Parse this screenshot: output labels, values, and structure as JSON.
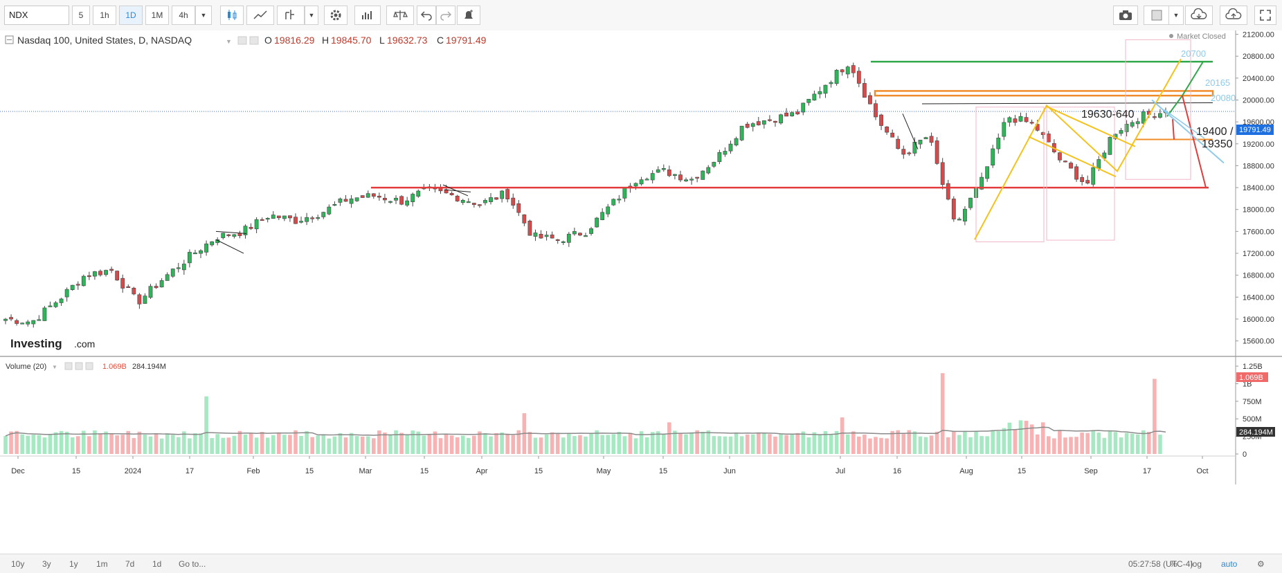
{
  "toolbar": {
    "symbol": "NDX",
    "intervals": [
      "5",
      "1h",
      "1D",
      "1M",
      "4h"
    ],
    "active_interval": "1D"
  },
  "legend": {
    "title": "Nasdaq 100, United States, D, NASDAQ",
    "o_label": "O",
    "o_value": "19816.29",
    "h_label": "H",
    "h_value": "19845.70",
    "l_label": "L",
    "l_value": "19632.73",
    "c_label": "C",
    "c_value": "19791.49",
    "market_status": "Market Closed",
    "brand": "Investing",
    "brand_suffix": ".com"
  },
  "volume_legend": {
    "title": "Volume (20)",
    "v1": "1.069B",
    "v2": "284.194M"
  },
  "chart_data": {
    "type": "candlestick",
    "price_axis": {
      "ticks": [
        15600,
        16000,
        16400,
        16800,
        17200,
        17600,
        18000,
        18400,
        18800,
        19200,
        19600,
        20000,
        20400,
        20800,
        21200
      ],
      "ylim": [
        15330,
        21270
      ],
      "last_price_label": "19791.49"
    },
    "volume_axis": {
      "ticks": [
        "0",
        "250M",
        "500M",
        "750M",
        "1B",
        "1.25B"
      ],
      "ylim": [
        0,
        1.3
      ],
      "last_volume_label": "1.069B",
      "ma_label": "284.194M"
    },
    "time_axis": {
      "labels": [
        "Dec",
        "15",
        "2024",
        "17",
        "Feb",
        "15",
        "Mar",
        "15",
        "Apr",
        "15",
        "May",
        "15",
        "Jun",
        "Jul",
        "16",
        "Aug",
        "15",
        "Sep",
        "17",
        "Oct"
      ]
    },
    "annotations": {
      "level_20700": "20700",
      "level_20165": "20165",
      "level_20080": "20080",
      "level_19630": "19630-640",
      "level_19400": "19400 /",
      "level_19350": "19350"
    },
    "ohlc_series": [
      {
        "d": "2023-11-30",
        "c": 16000
      },
      {
        "d": "2023-12-07",
        "c": 15950
      },
      {
        "d": "2023-12-14",
        "c": 16350
      },
      {
        "d": "2023-12-21",
        "c": 16800
      },
      {
        "d": "2023-12-28",
        "c": 16900
      },
      {
        "d": "2024-01-04",
        "c": 16300
      },
      {
        "d": "2024-01-11",
        "c": 16750
      },
      {
        "d": "2024-01-18",
        "c": 17150
      },
      {
        "d": "2024-01-25",
        "c": 17500
      },
      {
        "d": "2024-02-01",
        "c": 17600
      },
      {
        "d": "2024-02-08",
        "c": 17900
      },
      {
        "d": "2024-02-15",
        "c": 17800
      },
      {
        "d": "2024-02-22",
        "c": 17950
      },
      {
        "d": "2024-02-29",
        "c": 18200
      },
      {
        "d": "2024-03-07",
        "c": 18250
      },
      {
        "d": "2024-03-14",
        "c": 18150
      },
      {
        "d": "2024-03-21",
        "c": 18350
      },
      {
        "d": "2024-03-28",
        "c": 18250
      },
      {
        "d": "2024-04-04",
        "c": 18100
      },
      {
        "d": "2024-04-11",
        "c": 18300
      },
      {
        "d": "2024-04-18",
        "c": 17500
      },
      {
        "d": "2024-04-25",
        "c": 17450
      },
      {
        "d": "2024-05-02",
        "c": 17600
      },
      {
        "d": "2024-05-09",
        "c": 18100
      },
      {
        "d": "2024-05-16",
        "c": 18600
      },
      {
        "d": "2024-05-23",
        "c": 18700
      },
      {
        "d": "2024-05-30",
        "c": 18550
      },
      {
        "d": "2024-06-06",
        "c": 18950
      },
      {
        "d": "2024-06-13",
        "c": 19550
      },
      {
        "d": "2024-06-20",
        "c": 19650
      },
      {
        "d": "2024-06-27",
        "c": 19750
      },
      {
        "d": "2024-07-04",
        "c": 20250
      },
      {
        "d": "2024-07-10",
        "c": 20700
      },
      {
        "d": "2024-07-17",
        "c": 19700
      },
      {
        "d": "2024-07-24",
        "c": 19000
      },
      {
        "d": "2024-07-31",
        "c": 19350
      },
      {
        "d": "2024-08-05",
        "c": 17700
      },
      {
        "d": "2024-08-12",
        "c": 18500
      },
      {
        "d": "2024-08-19",
        "c": 19700
      },
      {
        "d": "2024-08-26",
        "c": 19550
      },
      {
        "d": "2024-09-03",
        "c": 18900
      },
      {
        "d": "2024-09-06",
        "c": 18450
      },
      {
        "d": "2024-09-13",
        "c": 19400
      },
      {
        "d": "2024-09-20",
        "c": 19700
      },
      {
        "d": "2024-09-23",
        "c": 19791.49
      }
    ]
  },
  "bottom": {
    "ranges": [
      "10y",
      "3y",
      "1y",
      "1m",
      "7d",
      "1d"
    ],
    "goto": "Go to...",
    "time": "05:27:58 (UTC-4)",
    "percent": "%",
    "log": "log",
    "auto": "auto"
  }
}
